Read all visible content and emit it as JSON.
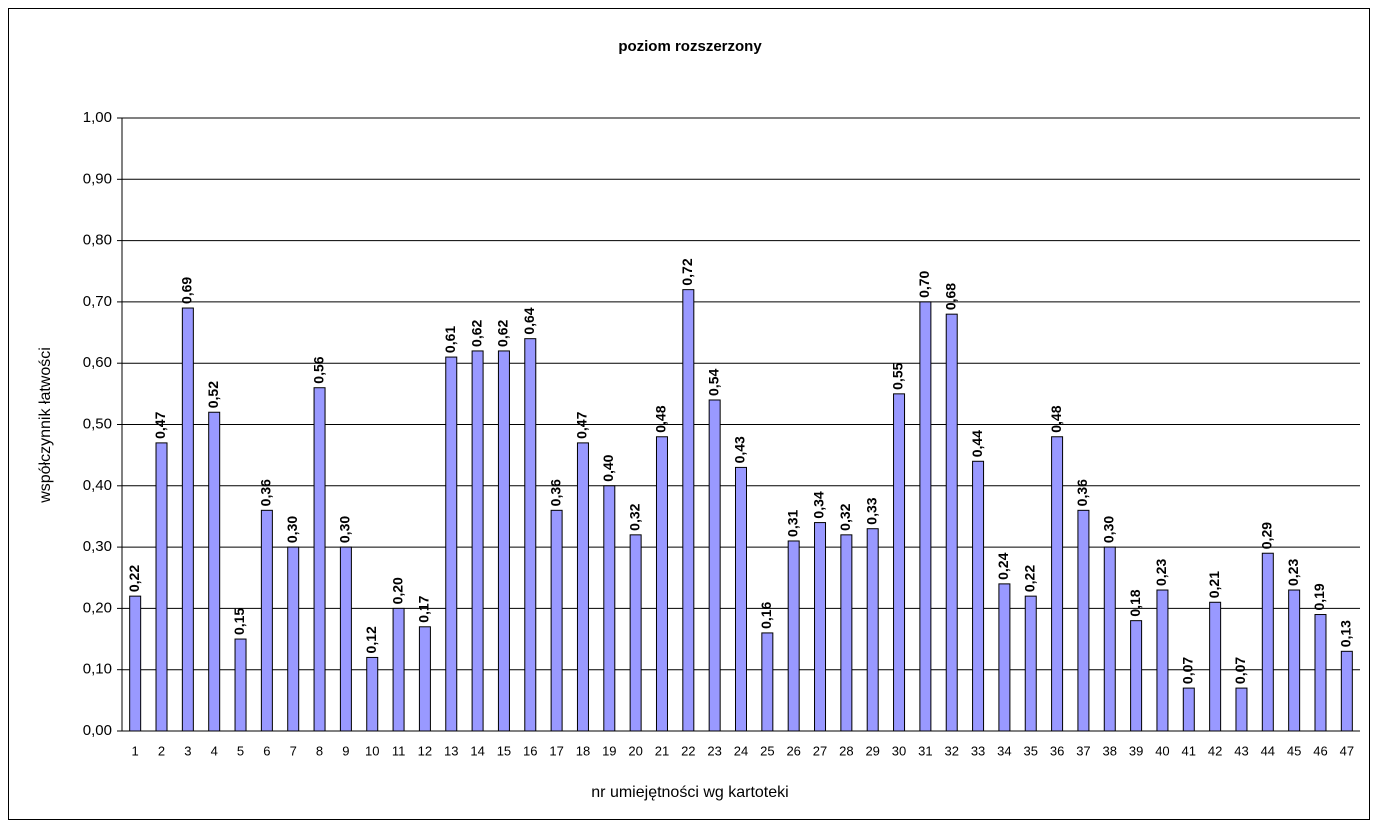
{
  "chart_data": {
    "type": "bar",
    "title": "poziom rozszerzony",
    "x_label": "nr umiejętności wg kartoteki",
    "y_label": "współczynnik łatwości",
    "categories": [
      "1",
      "2",
      "3",
      "4",
      "5",
      "6",
      "7",
      "8",
      "9",
      "10",
      "11",
      "12",
      "13",
      "14",
      "15",
      "16",
      "17",
      "18",
      "19",
      "20",
      "21",
      "22",
      "23",
      "24",
      "25",
      "26",
      "27",
      "28",
      "29",
      "30",
      "31",
      "32",
      "33",
      "34",
      "35",
      "36",
      "37",
      "38",
      "39",
      "40",
      "41",
      "42",
      "43",
      "44",
      "45",
      "46",
      "47"
    ],
    "values": [
      0.22,
      0.47,
      0.69,
      0.52,
      0.15,
      0.36,
      0.3,
      0.56,
      0.3,
      0.12,
      0.2,
      0.17,
      0.61,
      0.62,
      0.62,
      0.64,
      0.36,
      0.47,
      0.4,
      0.32,
      0.48,
      0.72,
      0.54,
      0.43,
      0.16,
      0.31,
      0.34,
      0.32,
      0.33,
      0.55,
      0.7,
      0.68,
      0.44,
      0.24,
      0.22,
      0.48,
      0.36,
      0.3,
      0.18,
      0.23,
      0.07,
      0.21,
      0.07,
      0.29,
      0.23,
      0.19,
      0.13
    ],
    "value_labels": [
      "0,22",
      "0,47",
      "0,69",
      "0,52",
      "0,15",
      "0,36",
      "0,30",
      "0,56",
      "0,30",
      "0,12",
      "0,20",
      "0,17",
      "0,61",
      "0,62",
      "0,62",
      "0,64",
      "0,36",
      "0,47",
      "0,40",
      "0,32",
      "0,48",
      "0,72",
      "0,54",
      "0,43",
      "0,16",
      "0,31",
      "0,34",
      "0,32",
      "0,33",
      "0,55",
      "0,70",
      "0,68",
      "0,44",
      "0,24",
      "0,22",
      "0,48",
      "0,36",
      "0,30",
      "0,18",
      "0,23",
      "0,07",
      "0,21",
      "0,07",
      "0,29",
      "0,23",
      "0,19",
      "0,13"
    ],
    "color": "#9999ff",
    "ylim": [
      0,
      1
    ],
    "yticks": [
      {
        "value": 0,
        "label": "0,00"
      },
      {
        "value": 0.1,
        "label": "0,10"
      },
      {
        "value": 0.2,
        "label": "0,20"
      },
      {
        "value": 0.3,
        "label": "0,30"
      },
      {
        "value": 0.4,
        "label": "0,40"
      },
      {
        "value": 0.5,
        "label": "0,50"
      },
      {
        "value": 0.6,
        "label": "0,60"
      },
      {
        "value": 0.7,
        "label": "0,70"
      },
      {
        "value": 0.8,
        "label": "0,80"
      },
      {
        "value": 0.9,
        "label": "0,90"
      },
      {
        "value": 1,
        "label": "1,00"
      }
    ],
    "grid": true
  }
}
